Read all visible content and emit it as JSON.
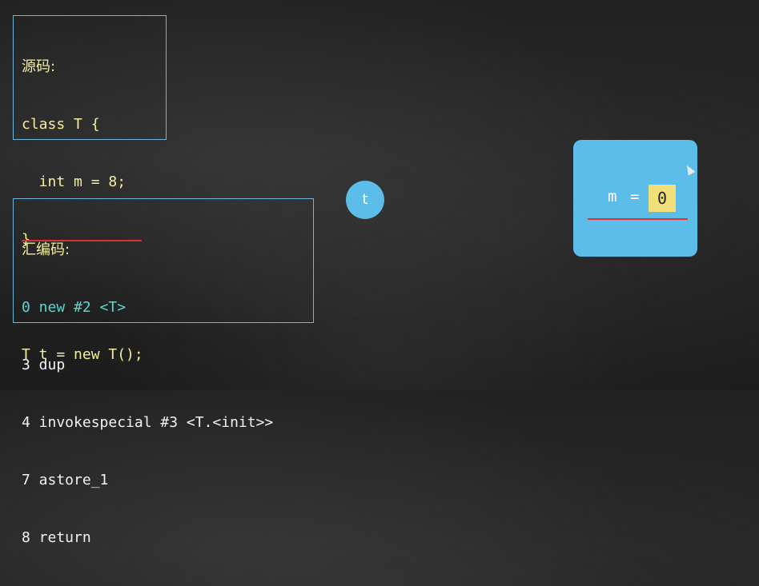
{
  "source": {
    "heading": "源码:",
    "lines": [
      "class T {",
      "  int m = 8;",
      "}",
      "",
      "T t = new T();"
    ]
  },
  "bytecode": {
    "heading": "汇编码:",
    "lines": [
      "0 new #2 <T>",
      "3 dup",
      "4 invokespecial #3 <T.<init>>",
      "7 astore_1",
      "8 return"
    ],
    "current_index": 0
  },
  "reference": {
    "label": "t"
  },
  "object": {
    "field_name": "m",
    "equals": "=",
    "field_value": "0"
  },
  "colors": {
    "panel_border": "#6fb6d8",
    "source_text": "#f2ee9c",
    "current_instruction": "#5ad6d0",
    "highlight_underline": "#e0302a",
    "object_fill": "#5bbde8",
    "value_fill": "#f1e07a"
  },
  "icons": {
    "cursor": "mouse-pointer-icon"
  }
}
